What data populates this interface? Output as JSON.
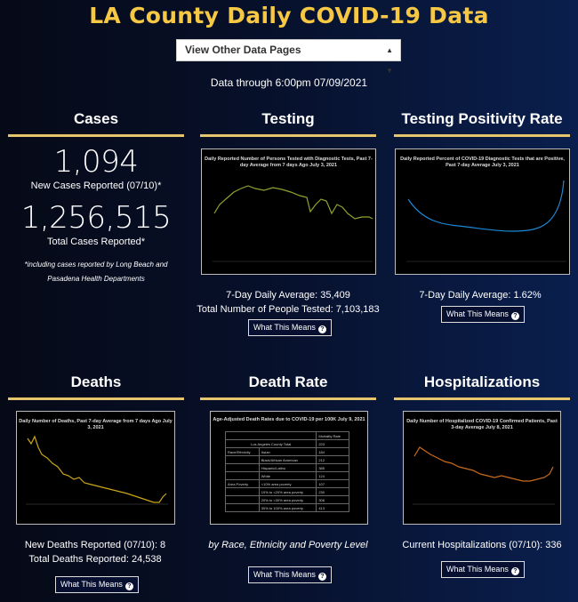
{
  "header": {
    "title": "LA County Daily COVID-19 Data",
    "select_value": "View Other Data Pages",
    "data_through": "Data through 6:00pm 07/09/2021"
  },
  "cases": {
    "heading": "Cases",
    "new_value": "1,094",
    "new_label": "New Cases Reported (07/10)*",
    "total_value": "1,256,515",
    "total_label": "Total Cases Reported*",
    "note": "*including cases reported by Long Beach and Pasadena Health Departments"
  },
  "testing": {
    "heading": "Testing",
    "chart_title": "Daily Reported Number of Persons Tested with Diagnostic Tests, Past 7-day Average from 7 days Ago July 3, 2021",
    "avg": "7-Day Daily Average: 35,409",
    "total": "Total Number of People Tested: 7,103,183",
    "button": "What This Means"
  },
  "positivity": {
    "heading": "Testing Positivity Rate",
    "chart_title": "Daily Reported Percent of COVID-19 Diagnostic Tests that are Positive, Past 7-day Average July 3, 2021",
    "avg": "7-Day Daily Average: 1.62%",
    "button": "What This Means"
  },
  "deaths": {
    "heading": "Deaths",
    "chart_title": "Daily Number of Deaths, Past 7-day Average from 7 days Ago July 3, 2021",
    "new": "New Deaths Reported (07/10): 8",
    "total": "Total Deaths Reported: 24,538",
    "button": "What This Means"
  },
  "death_rate": {
    "heading": "Death Rate",
    "chart_title": "Age-Adjusted Death Rates due to COVID-19 per 100K July 9, 2021",
    "table_header": "Mortality Rate",
    "table_total_label": "Los Angeles County Total",
    "table_total_value": "223",
    "rows": [
      [
        "Race/Ethnicity",
        "Asian",
        "184"
      ],
      [
        "",
        "Black/African American",
        "212"
      ],
      [
        "",
        "Hispanic/Latino",
        "385"
      ],
      [
        "",
        "White",
        "124"
      ],
      [
        "Area Poverty",
        "<10% area poverty",
        "107"
      ],
      [
        "",
        "10% to <20% area poverty",
        "230"
      ],
      [
        "",
        "20% to <30% area poverty",
        "306"
      ],
      [
        "",
        "30% to 100% area poverty",
        "413"
      ]
    ],
    "caption": "by Race, Ethnicity and Poverty Level",
    "button": "What This Means"
  },
  "hospital": {
    "heading": "Hospitalizations",
    "chart_title": "Daily Number of Hospitalized COVID-19 Confirmed Patients, Past 3-day Average July 8, 2021",
    "current": "Current Hospitalizations (07/10): 336",
    "button": "What This Means"
  },
  "colors": {
    "title": "#f7c844",
    "rule": "#e6c66d",
    "testing_line": "#8ea32f",
    "positivity_line": "#1e88d6",
    "deaths_line": "#c9a617",
    "hosp_line": "#c86a1d"
  }
}
